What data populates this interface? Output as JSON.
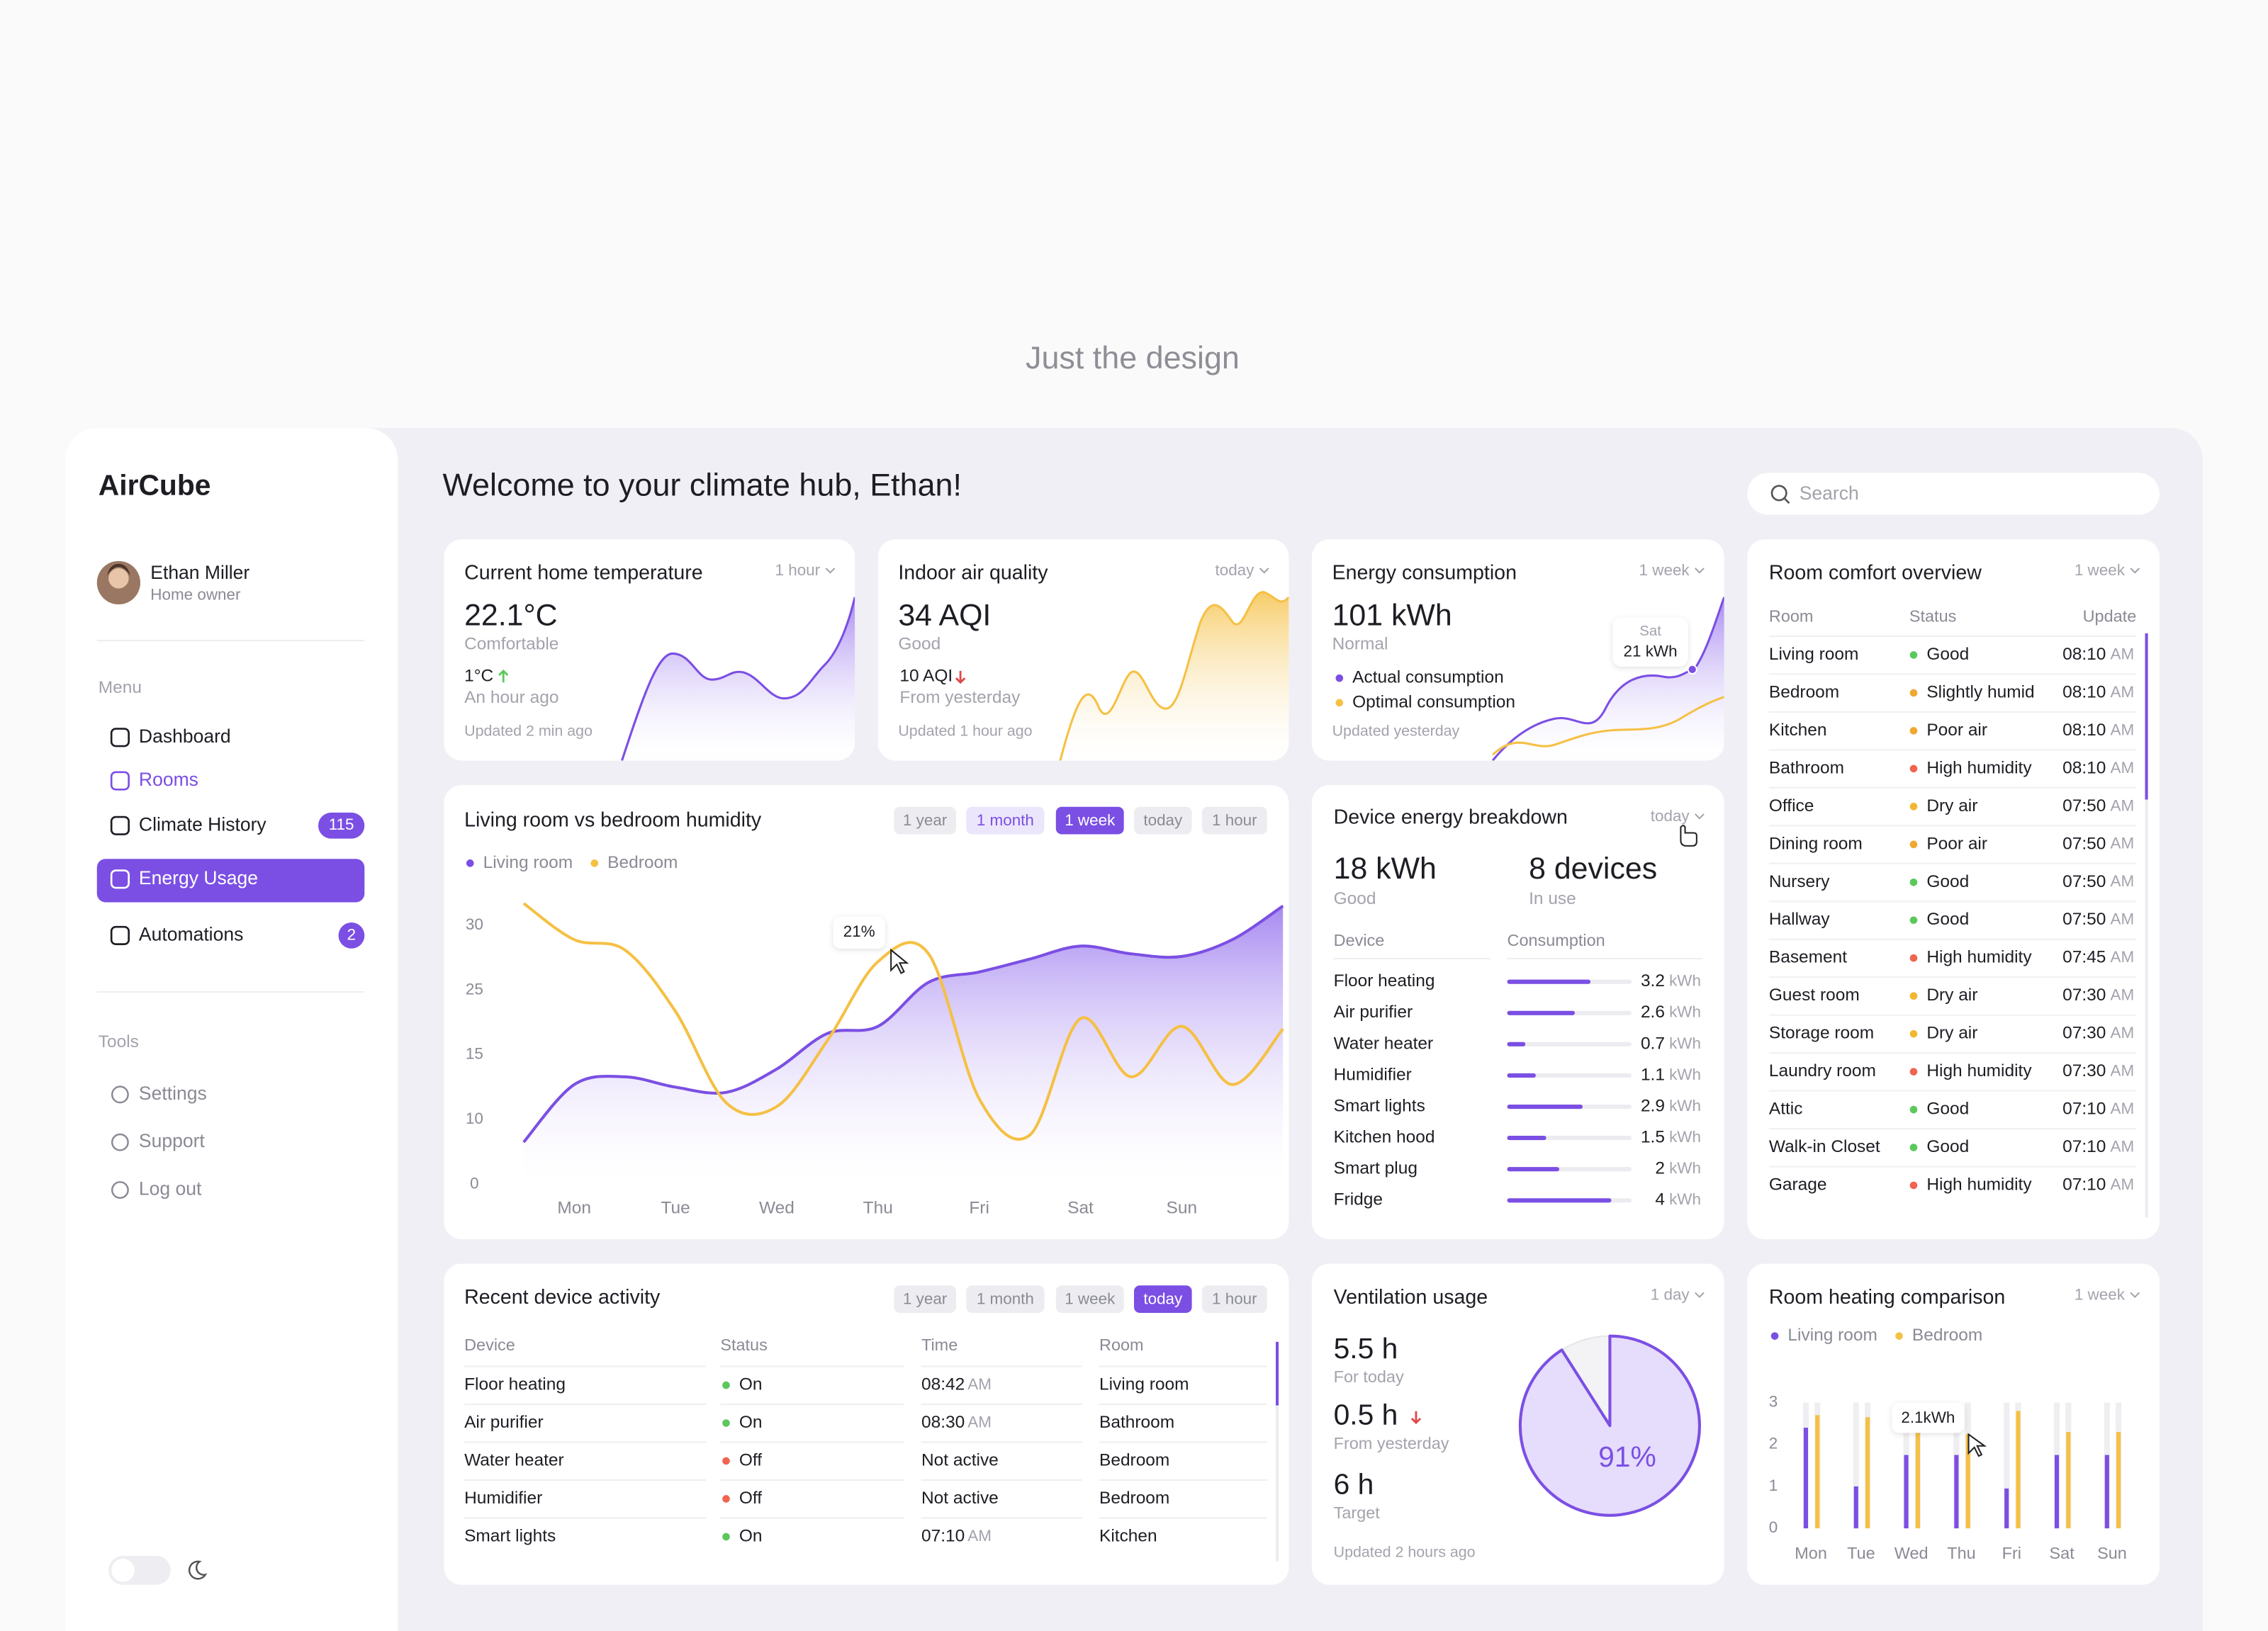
{
  "page_heading": "Just the design",
  "sidebar": {
    "brand": "AirCube",
    "user": {
      "name": "Ethan Miller",
      "role": "Home owner"
    },
    "menu_title": "Menu",
    "menu": [
      {
        "label": "Dashboard"
      },
      {
        "label": "Rooms"
      },
      {
        "label": "Climate History",
        "badge": 115
      },
      {
        "label": "Energy Usage"
      },
      {
        "label": "Automations",
        "badge": 2
      }
    ],
    "active": 3,
    "hover": 1,
    "tools_title": "Tools",
    "tools": [
      "Settings",
      "Support",
      "Log out"
    ]
  },
  "header": {
    "title": "Welcome to your climate hub, Ethan!",
    "search": "Search"
  },
  "temperature": {
    "title": "Current home temperature",
    "range": "1 hour",
    "value": "22.1°C",
    "status": "Comfortable",
    "change": "1°C",
    "change_note": "An hour ago",
    "updated": "Updated 2 min ago"
  },
  "air_quality": {
    "title": "Indoor air quality",
    "range": "today",
    "value": "34 AQI",
    "status": "Good",
    "change": "10 AQI",
    "change_note": "From yesterday",
    "updated": "Updated 1 hour ago"
  },
  "energy": {
    "title": "Energy consumption",
    "range": "1 week",
    "value": "101 kWh",
    "status": "Normal",
    "legend": [
      {
        "name": "Actual consumption",
        "color": "#7b4fe3"
      },
      {
        "name": "Optimal consumption",
        "color": "#f5c044"
      }
    ],
    "updated": "Updated yesterday",
    "tooltip": {
      "day": "Sat",
      "value": "21 kWh"
    }
  },
  "humidity_chart": {
    "type": "line",
    "title": "Living room vs bedroom humidity",
    "ranges": [
      "1 year",
      "1 month",
      "1 week",
      "today",
      "1 hour"
    ],
    "active": 2,
    "hover": 1,
    "categories": [
      null,
      "Mon",
      null,
      "Tue",
      null,
      "Wed",
      null,
      "Thu",
      null,
      "Fri",
      null,
      "Sat",
      null,
      "Sun",
      null,
      null
    ],
    "series": [
      {
        "name": "Living room",
        "color": "#7b4fe3",
        "values": [
          6.5,
          12.7,
          13.3,
          12.5,
          12.1,
          13.9,
          18.3,
          19.4,
          25.6,
          26.4,
          27.4,
          28.4,
          27.8,
          27.6,
          28.9,
          31.5
        ]
      },
      {
        "name": "Bedroom",
        "color": "#f5c044",
        "values": [
          31.7,
          28.9,
          28.1,
          21.7,
          11.3,
          11.0,
          17.2,
          27.2,
          27.8,
          11.6,
          7.6,
          20.6,
          13.3,
          19.4,
          12.7,
          19.0
        ]
      }
    ],
    "ylim": [
      0,
      30
    ],
    "yticks": [
      30,
      25,
      15,
      10,
      0
    ],
    "annotation": "21%"
  },
  "device_breakdown": {
    "title": "Device energy breakdown",
    "range": "today",
    "total": "18 kWh",
    "total_status": "Good",
    "devices": "8 devices",
    "devices_note": "In use",
    "columns": [
      "Device",
      "Consumption"
    ],
    "unit": "kWh",
    "color": "#7b4fe3",
    "rows": [
      {
        "device": "Floor heating",
        "value": 3.2
      },
      {
        "device": "Air purifier",
        "value": 2.6
      },
      {
        "device": "Water heater",
        "value": 0.7
      },
      {
        "device": "Humidifier",
        "value": 1.1
      },
      {
        "device": "Smart lights",
        "value": 2.9
      },
      {
        "device": "Kitchen hood",
        "value": 1.5
      },
      {
        "device": "Smart plug",
        "value": 2
      },
      {
        "device": "Fridge",
        "value": 4
      }
    ]
  },
  "room_comfort": {
    "title": "Room comfort overview",
    "range": "1 week",
    "columns": [
      "Room",
      "Status",
      "Update"
    ],
    "rows": [
      {
        "room": "Living room",
        "status": "Good",
        "color": "#5cc85c",
        "time": "08:10",
        "period": "AM"
      },
      {
        "room": "Bedroom",
        "status": "Slightly humid",
        "color": "#f0a830",
        "time": "08:10",
        "period": "AM"
      },
      {
        "room": "Kitchen",
        "status": "Poor air",
        "color": "#f0a830",
        "time": "08:10",
        "period": "AM"
      },
      {
        "room": "Bathroom",
        "status": "High humidity",
        "color": "#f06450",
        "time": "08:10",
        "period": "AM"
      },
      {
        "room": "Office",
        "status": "Dry air",
        "color": "#f0b830",
        "time": "07:50",
        "period": "AM"
      },
      {
        "room": "Dining room",
        "status": "Poor air",
        "color": "#f0a830",
        "time": "07:50",
        "period": "AM"
      },
      {
        "room": "Nursery",
        "status": "Good",
        "color": "#5cc85c",
        "time": "07:50",
        "period": "AM"
      },
      {
        "room": "Hallway",
        "status": "Good",
        "color": "#5cc85c",
        "time": "07:50",
        "period": "AM"
      },
      {
        "room": "Basement",
        "status": "High humidity",
        "color": "#f06450",
        "time": "07:45",
        "period": "AM"
      },
      {
        "room": "Guest room",
        "status": "Dry air",
        "color": "#f0b830",
        "time": "07:30",
        "period": "AM"
      },
      {
        "room": "Storage room",
        "status": "Dry air",
        "color": "#f0b830",
        "time": "07:30",
        "period": "AM"
      },
      {
        "room": "Laundry room",
        "status": "High humidity",
        "color": "#f06450",
        "time": "07:30",
        "period": "AM"
      },
      {
        "room": "Attic",
        "status": "Good",
        "color": "#5cc85c",
        "time": "07:10",
        "period": "AM"
      },
      {
        "room": "Walk-in Closet",
        "status": "Good",
        "color": "#5cc85c",
        "time": "07:10",
        "period": "AM"
      },
      {
        "room": "Garage",
        "status": "High humidity",
        "color": "#f06450",
        "time": "07:10",
        "period": "AM"
      }
    ]
  },
  "device_activity": {
    "title": "Recent device activity",
    "ranges": [
      "1 year",
      "1 month",
      "1 week",
      "today",
      "1 hour"
    ],
    "active": 3,
    "columns": [
      "Device",
      "Status",
      "Time",
      "Room"
    ],
    "rows": [
      {
        "device": "Floor heating",
        "status": "On",
        "color": "#5cc85c",
        "time": "08:42",
        "period": "AM",
        "room": "Living room"
      },
      {
        "device": "Air purifier",
        "status": "On",
        "color": "#5cc85c",
        "time": "08:30",
        "period": "AM",
        "room": "Bathroom"
      },
      {
        "device": "Water heater",
        "status": "Off",
        "color": "#f06450",
        "time": "Not active",
        "room": "Bedroom"
      },
      {
        "device": "Humidifier",
        "status": "Off",
        "color": "#f06450",
        "time": "Not active",
        "room": "Bedroom"
      },
      {
        "device": "Smart lights",
        "status": "On",
        "color": "#5cc85c",
        "time": "07:10",
        "period": "AM",
        "room": "Kitchen"
      }
    ]
  },
  "ventilation": {
    "title": "Ventilation usage",
    "range": "1 day",
    "today": "5.5 h",
    "today_note": "For today",
    "change": "0.5 h",
    "change_note": "From yesterday",
    "target": "6 h",
    "target_note": "Target",
    "updated": "Updated 2 hours ago",
    "usage": {
      "type": "pie",
      "values": [
        91
      ],
      "value_labels": [
        "91%"
      ],
      "color": "#7b4fe3"
    }
  },
  "heating_chart": {
    "type": "bar",
    "title": "Room heating comparison",
    "range": "1 week",
    "categories": [
      "Mon",
      "Tue",
      "Wed",
      "Thu",
      "Fri",
      "Sat",
      "Sun"
    ],
    "series": [
      {
        "name": "Living room",
        "color": "#7b4fe3",
        "values": [
          2.4,
          1.0,
          1.75,
          1.75,
          0.95,
          1.75,
          1.75
        ]
      },
      {
        "name": "Bedroom",
        "color": "#f5c044",
        "values": [
          2.7,
          2.65,
          2.9,
          2.25,
          2.8,
          2.3,
          2.3
        ]
      }
    ],
    "ylim": [
      0,
      3
    ],
    "yticks": [
      0,
      1,
      2,
      3
    ],
    "annotation": "2.1kWh"
  }
}
